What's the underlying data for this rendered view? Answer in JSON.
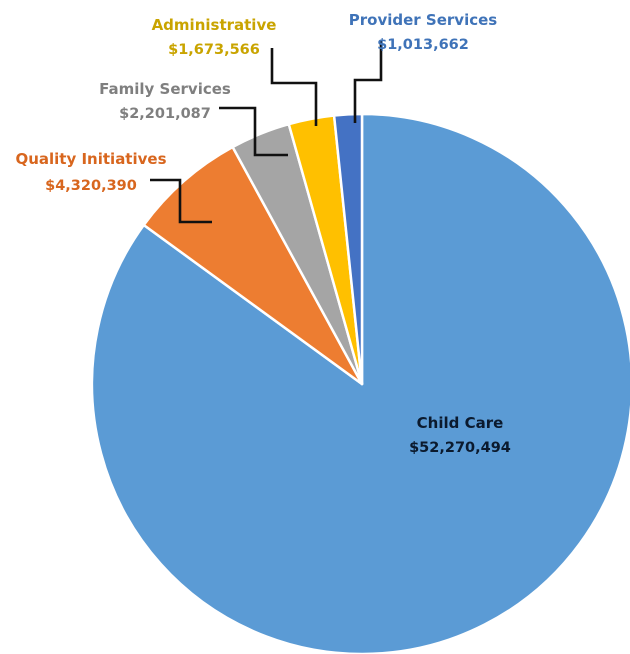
{
  "chart_data": {
    "type": "pie",
    "title": "",
    "slices": [
      {
        "label": "Child Care",
        "value_label": "$52,270,494",
        "value": 52270494,
        "color": "#5b9bd5",
        "label_color": "#0b1a2e"
      },
      {
        "label": "Quality Initiatives",
        "value_label": "$4,320,390",
        "value": 4320390,
        "color": "#ed7d31",
        "label_color": "#d8661e"
      },
      {
        "label": "Family Services",
        "value_label": "$2,201,087",
        "value": 2201087,
        "color": "#a5a5a5",
        "label_color": "#7f7f7f"
      },
      {
        "label": "Administrative",
        "value_label": "$1,673,566",
        "value": 1673566,
        "color": "#ffc000",
        "label_color": "#c9a400"
      },
      {
        "label": "Provider Services",
        "value_label": "$1,013,662",
        "value": 1013662,
        "color": "#4472c4",
        "label_color": "#3f73b8"
      }
    ],
    "start_angle_deg": 0,
    "direction": "clockwise",
    "slice_border_color": "#ffffff"
  }
}
